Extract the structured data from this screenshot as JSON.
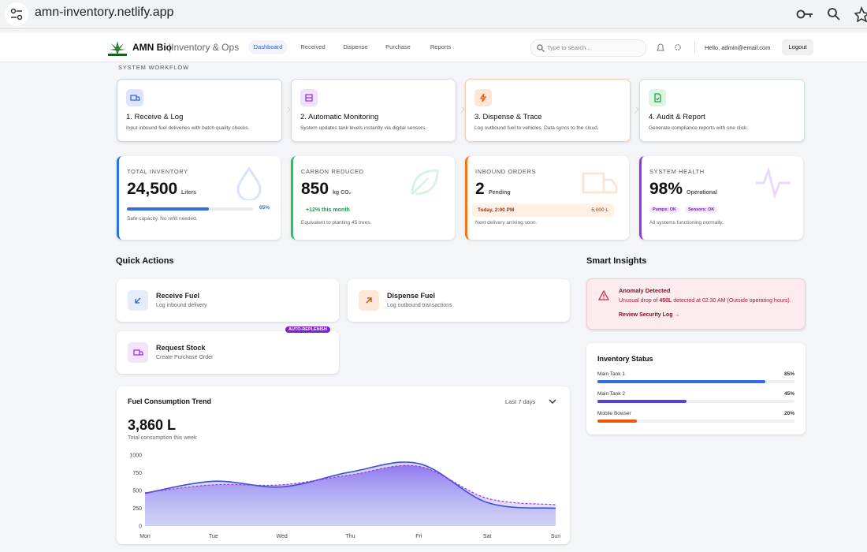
{
  "browser": {
    "url": "amn-inventory.netlify.app"
  },
  "header": {
    "brand": "AMN Bio",
    "brand_suffix": "|Inventory & Ops",
    "nav": [
      "Dashboard",
      "Received",
      "Dispense",
      "Purchase",
      "Reports"
    ],
    "search_placeholder": "Type to search...",
    "greeting": "Hello, admin@email.com",
    "logout": "Logout"
  },
  "workflow": {
    "title": "SYSTEM WORKFLOW",
    "steps": [
      {
        "title": "1. Receive & Log",
        "desc": "Input inbound fuel deliveries with batch quality checks."
      },
      {
        "title": "2. Automatic Monitoring",
        "desc": "System updates tank levels instantly via digital sensors."
      },
      {
        "title": "3. Dispense & Trace",
        "desc": "Log outbound fuel to vehicles. Data syncs to the cloud."
      },
      {
        "title": "4. Audit & Report",
        "desc": "Generate compliance reports with one click."
      }
    ]
  },
  "stats": [
    {
      "label": "TOTAL INVENTORY",
      "value": "24,500",
      "unit": "Liters",
      "progress": {
        "value": 65,
        "label": "65%"
      },
      "note": "Safe capacity. No refill needed."
    },
    {
      "label": "CARBON REDUCED",
      "value": "850",
      "unit": "kg CO₂",
      "trend": "+12% this month",
      "note": "Equivalent to planting 45 trees."
    },
    {
      "label": "INBOUND ORDERS",
      "value": "2",
      "unit": "Pending",
      "delivery": {
        "time": "Today, 2:00 PM",
        "amount": "5,000 L"
      },
      "note": "Next delivery arriving soon."
    },
    {
      "label": "SYSTEM HEALTH",
      "value": "98%",
      "unit": "Operational",
      "badges": [
        "Pumps: OK",
        "Sensors: OK"
      ],
      "note": "All systems functioning normally."
    }
  ],
  "quick_actions": {
    "title": "Quick Actions",
    "items": [
      {
        "name": "Receive Fuel",
        "desc": "Log inbound delivery"
      },
      {
        "name": "Dispense Fuel",
        "desc": "Log outbound transactions"
      },
      {
        "name": "Request Stock",
        "desc": "Create Purchase Order",
        "badge": "AUTO-REPLENISH"
      }
    ]
  },
  "insights": {
    "title": "Smart Insights",
    "alert": {
      "title": "Anomaly Detected",
      "text_before": "Unusual drop of ",
      "highlight": "450L",
      "text_after": " detected at 02:30 AM (Outside operating hours).",
      "link": "Review Security Log →"
    }
  },
  "inventory_status": {
    "title": "Inventory Status",
    "items": [
      {
        "name": "Main Tank 1",
        "value": 85,
        "label": "85%",
        "color": "#2f6fe0"
      },
      {
        "name": "Main Tank 2",
        "value": 45,
        "label": "45%",
        "color": "#5b3fd9"
      },
      {
        "name": "Mobile Bowser",
        "value": 20,
        "label": "20%",
        "color": "#ea580c"
      }
    ]
  },
  "chart_data": {
    "type": "line",
    "title": "Fuel Consumption Trend",
    "range_select": "Last 7 days",
    "total": "3,860 L",
    "subtitle": "Total consumption this week",
    "categories": [
      "Mon",
      "Tue",
      "Wed",
      "Thu",
      "Fri",
      "Sat",
      "Sun"
    ],
    "series": [
      {
        "color": "#3b4fd8",
        "values": [
          460,
          630,
          550,
          760,
          880,
          330,
          250
        ]
      },
      {
        "color": "#9b3fd0",
        "values": [
          470,
          580,
          580,
          720,
          840,
          390,
          300
        ]
      }
    ],
    "ylim": [
      0,
      1000
    ],
    "yticks": [
      0,
      250,
      500,
      750,
      1000
    ]
  }
}
